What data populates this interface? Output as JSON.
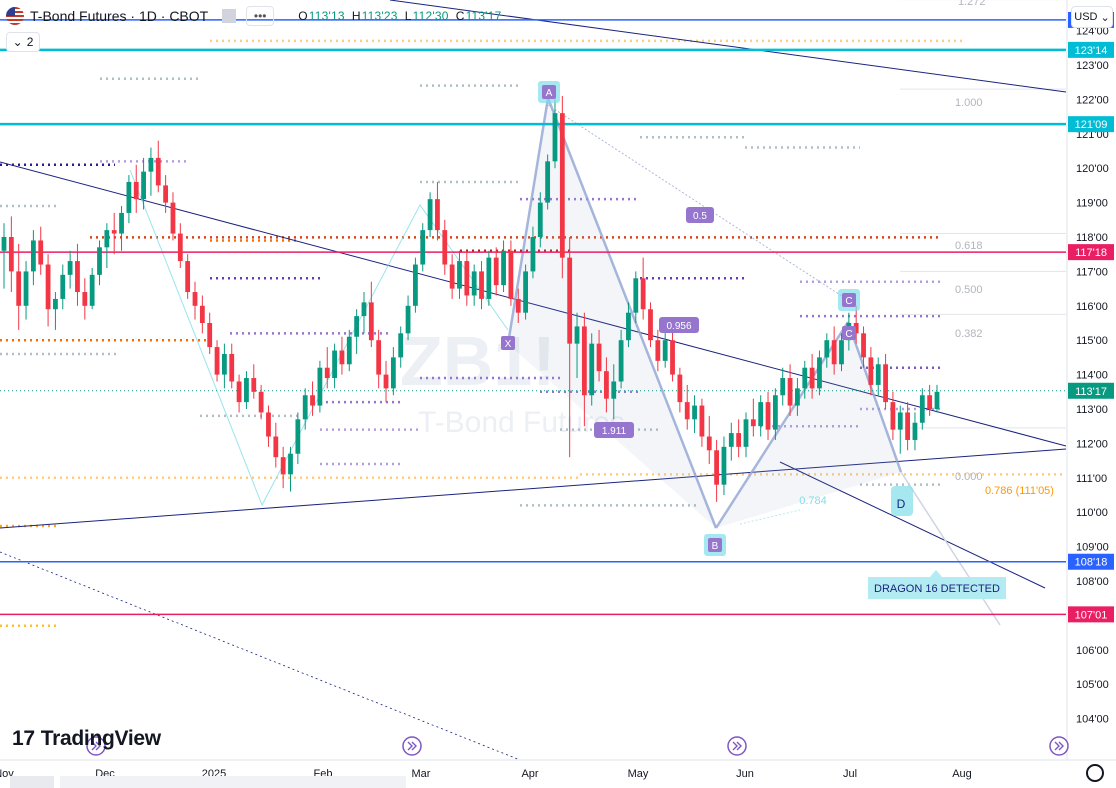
{
  "header": {
    "symbol": "T-Bond Futures",
    "interval": "1D",
    "exchange": "CBOT",
    "ohlc": {
      "o_label": "O",
      "o": "113'13",
      "h_label": "H",
      "h": "113'23",
      "l_label": "L",
      "l": "112'30",
      "c_label": "C",
      "c": "113'17"
    },
    "collapse_count": "2",
    "currency": "USD"
  },
  "branding": {
    "logo_text": "TradingView"
  },
  "watermark": {
    "code": "ZB1!",
    "name": "T-Bond Futures"
  },
  "colors": {
    "up": "#089981",
    "down": "#f23645",
    "cyan": "#00bcd4",
    "pink": "#e91e63",
    "blue": "#2962ff",
    "navy": "#1a237e",
    "purple": "#7e57c2",
    "orange": "#ff9800"
  },
  "chart_data": {
    "type": "candlestick",
    "ylim": [
      103.5,
      124.5
    ],
    "y_ticks": [
      "104'00",
      "105'00",
      "106'00",
      "107'00",
      "108'00",
      "109'00",
      "110'00",
      "111'00",
      "112'00",
      "113'00",
      "114'00",
      "115'00",
      "116'00",
      "117'00",
      "118'00",
      "119'00",
      "120'00",
      "121'00",
      "122'00",
      "123'00",
      "124'00"
    ],
    "x_ticks": [
      "Nov",
      "Dec",
      "2025",
      "Feb",
      "Mar",
      "Apr",
      "May",
      "Jun",
      "Jul",
      "Aug"
    ],
    "levels": [
      {
        "label": "124'10",
        "value": 124.31,
        "color": "#2962ff"
      },
      {
        "label": "123'14",
        "value": 123.44,
        "color": "#00bcd4"
      },
      {
        "label": "121'09",
        "value": 121.28,
        "color": "#00bcd4"
      },
      {
        "label": "117'18",
        "value": 117.56,
        "color": "#e91e63"
      },
      {
        "label": "113'17",
        "value": 113.53,
        "color": "#089981"
      },
      {
        "label": "108'18",
        "value": 108.56,
        "color": "#2962ff"
      },
      {
        "label": "107'01",
        "value": 107.03,
        "color": "#e91e63"
      }
    ],
    "fib_labels": [
      "1.272",
      "1.000",
      "0.618",
      "0.500",
      "0.382",
      "0.000",
      "0.786 (111'05)"
    ],
    "pattern_points": [
      {
        "label": "X",
        "date": "2025-03-22",
        "value": 115.5
      },
      {
        "label": "A",
        "date": "2025-04-04",
        "value": 122.1
      },
      {
        "label": "B",
        "date": "2025-05-22",
        "value": 110.1
      },
      {
        "label": "C",
        "date": "2025-06-30",
        "value": 116.0
      },
      {
        "label": "D",
        "date": "2025-07-15",
        "value": 111.7
      }
    ],
    "ratios": [
      "0.5",
      "0.956",
      "1.911",
      "0.784"
    ],
    "annotation": "DRAGON 16 DETECTED",
    "candles": [
      {
        "o": 117.6,
        "h": 118.4,
        "l": 116.5,
        "c": 118.0
      },
      {
        "o": 118.0,
        "h": 118.6,
        "l": 116.4,
        "c": 117.0
      },
      {
        "o": 117.0,
        "h": 117.8,
        "l": 115.3,
        "c": 116.0
      },
      {
        "o": 116.0,
        "h": 117.3,
        "l": 115.6,
        "c": 117.0
      },
      {
        "o": 117.0,
        "h": 118.2,
        "l": 116.6,
        "c": 117.9
      },
      {
        "o": 117.9,
        "h": 118.3,
        "l": 116.9,
        "c": 117.2
      },
      {
        "o": 117.2,
        "h": 117.5,
        "l": 115.4,
        "c": 115.9
      },
      {
        "o": 115.9,
        "h": 116.4,
        "l": 115.3,
        "c": 116.2
      },
      {
        "o": 116.2,
        "h": 117.2,
        "l": 115.9,
        "c": 116.9
      },
      {
        "o": 116.9,
        "h": 117.6,
        "l": 116.5,
        "c": 117.3
      },
      {
        "o": 117.3,
        "h": 117.8,
        "l": 116.0,
        "c": 116.4
      },
      {
        "o": 116.4,
        "h": 116.8,
        "l": 115.6,
        "c": 116.0
      },
      {
        "o": 116.0,
        "h": 117.1,
        "l": 115.9,
        "c": 116.9
      },
      {
        "o": 116.9,
        "h": 117.9,
        "l": 116.6,
        "c": 117.7
      },
      {
        "o": 117.7,
        "h": 118.4,
        "l": 117.1,
        "c": 118.2
      },
      {
        "o": 118.2,
        "h": 118.7,
        "l": 117.5,
        "c": 118.1
      },
      {
        "o": 118.1,
        "h": 118.9,
        "l": 117.6,
        "c": 118.7
      },
      {
        "o": 118.7,
        "h": 119.8,
        "l": 118.4,
        "c": 119.6
      },
      {
        "o": 119.6,
        "h": 120.1,
        "l": 118.7,
        "c": 119.1
      },
      {
        "o": 119.1,
        "h": 120.3,
        "l": 118.8,
        "c": 119.9
      },
      {
        "o": 119.9,
        "h": 120.6,
        "l": 119.2,
        "c": 120.3
      },
      {
        "o": 120.3,
        "h": 120.8,
        "l": 119.3,
        "c": 119.5
      },
      {
        "o": 119.5,
        "h": 119.8,
        "l": 118.7,
        "c": 119.0
      },
      {
        "o": 119.0,
        "h": 119.3,
        "l": 117.9,
        "c": 118.1
      },
      {
        "o": 118.1,
        "h": 118.4,
        "l": 117.1,
        "c": 117.3
      },
      {
        "o": 117.3,
        "h": 117.5,
        "l": 116.2,
        "c": 116.4
      },
      {
        "o": 116.4,
        "h": 116.7,
        "l": 115.6,
        "c": 116.0
      },
      {
        "o": 116.0,
        "h": 116.3,
        "l": 115.2,
        "c": 115.5
      },
      {
        "o": 115.5,
        "h": 115.8,
        "l": 114.6,
        "c": 114.8
      },
      {
        "o": 114.8,
        "h": 115.0,
        "l": 113.8,
        "c": 114.0
      },
      {
        "o": 114.0,
        "h": 114.9,
        "l": 113.6,
        "c": 114.6
      },
      {
        "o": 114.6,
        "h": 114.9,
        "l": 113.6,
        "c": 113.8
      },
      {
        "o": 113.8,
        "h": 114.0,
        "l": 112.9,
        "c": 113.2
      },
      {
        "o": 113.2,
        "h": 114.1,
        "l": 113.0,
        "c": 113.9
      },
      {
        "o": 113.9,
        "h": 114.3,
        "l": 113.3,
        "c": 113.5
      },
      {
        "o": 113.5,
        "h": 113.7,
        "l": 112.7,
        "c": 112.9
      },
      {
        "o": 112.9,
        "h": 113.1,
        "l": 111.9,
        "c": 112.2
      },
      {
        "o": 112.2,
        "h": 112.6,
        "l": 111.3,
        "c": 111.6
      },
      {
        "o": 111.6,
        "h": 111.9,
        "l": 110.7,
        "c": 111.1
      },
      {
        "o": 111.1,
        "h": 111.9,
        "l": 110.6,
        "c": 111.7
      },
      {
        "o": 111.7,
        "h": 112.9,
        "l": 111.4,
        "c": 112.7
      },
      {
        "o": 112.7,
        "h": 113.6,
        "l": 112.4,
        "c": 113.4
      },
      {
        "o": 113.4,
        "h": 113.8,
        "l": 112.8,
        "c": 113.1
      },
      {
        "o": 113.1,
        "h": 114.4,
        "l": 112.9,
        "c": 114.2
      },
      {
        "o": 114.2,
        "h": 114.8,
        "l": 113.6,
        "c": 113.9
      },
      {
        "o": 113.9,
        "h": 114.9,
        "l": 113.6,
        "c": 114.7
      },
      {
        "o": 114.7,
        "h": 115.1,
        "l": 114.0,
        "c": 114.3
      },
      {
        "o": 114.3,
        "h": 115.3,
        "l": 114.1,
        "c": 115.1
      },
      {
        "o": 115.1,
        "h": 115.9,
        "l": 114.6,
        "c": 115.7
      },
      {
        "o": 115.7,
        "h": 116.4,
        "l": 115.2,
        "c": 116.1
      },
      {
        "o": 116.1,
        "h": 116.7,
        "l": 114.8,
        "c": 115.0
      },
      {
        "o": 115.0,
        "h": 115.3,
        "l": 113.6,
        "c": 114.0
      },
      {
        "o": 114.0,
        "h": 114.4,
        "l": 113.2,
        "c": 113.6
      },
      {
        "o": 113.6,
        "h": 114.8,
        "l": 113.4,
        "c": 114.5
      },
      {
        "o": 114.5,
        "h": 115.4,
        "l": 114.2,
        "c": 115.2
      },
      {
        "o": 115.2,
        "h": 116.3,
        "l": 115.0,
        "c": 116.0
      },
      {
        "o": 116.0,
        "h": 117.4,
        "l": 115.8,
        "c": 117.2
      },
      {
        "o": 117.2,
        "h": 118.4,
        "l": 117.0,
        "c": 118.2
      },
      {
        "o": 118.2,
        "h": 119.3,
        "l": 118.0,
        "c": 119.1
      },
      {
        "o": 119.1,
        "h": 119.6,
        "l": 117.9,
        "c": 118.2
      },
      {
        "o": 118.2,
        "h": 118.5,
        "l": 116.9,
        "c": 117.2
      },
      {
        "o": 117.2,
        "h": 117.5,
        "l": 116.2,
        "c": 116.5
      },
      {
        "o": 116.5,
        "h": 117.6,
        "l": 116.2,
        "c": 117.3
      },
      {
        "o": 117.3,
        "h": 117.6,
        "l": 116.0,
        "c": 116.3
      },
      {
        "o": 116.3,
        "h": 117.2,
        "l": 116.0,
        "c": 117.0
      },
      {
        "o": 117.0,
        "h": 117.3,
        "l": 115.9,
        "c": 116.2
      },
      {
        "o": 116.2,
        "h": 117.6,
        "l": 116.0,
        "c": 117.4
      },
      {
        "o": 117.4,
        "h": 117.7,
        "l": 116.3,
        "c": 116.6
      },
      {
        "o": 116.6,
        "h": 117.9,
        "l": 116.4,
        "c": 117.6
      },
      {
        "o": 117.6,
        "h": 117.9,
        "l": 116.0,
        "c": 116.2
      },
      {
        "o": 116.2,
        "h": 116.5,
        "l": 115.5,
        "c": 115.8
      },
      {
        "o": 115.8,
        "h": 117.2,
        "l": 115.6,
        "c": 117.0
      },
      {
        "o": 117.0,
        "h": 118.3,
        "l": 116.8,
        "c": 118.0
      },
      {
        "o": 118.0,
        "h": 119.3,
        "l": 117.7,
        "c": 119.0
      },
      {
        "o": 119.0,
        "h": 120.4,
        "l": 118.8,
        "c": 120.2
      },
      {
        "o": 120.2,
        "h": 122.0,
        "l": 120.0,
        "c": 121.6
      },
      {
        "o": 121.6,
        "h": 122.1,
        "l": 116.8,
        "c": 117.4
      },
      {
        "o": 117.4,
        "h": 118.0,
        "l": 111.6,
        "c": 114.9
      },
      {
        "o": 114.9,
        "h": 115.8,
        "l": 113.9,
        "c": 115.4
      },
      {
        "o": 115.4,
        "h": 115.8,
        "l": 112.5,
        "c": 113.4
      },
      {
        "o": 113.4,
        "h": 115.2,
        "l": 113.1,
        "c": 114.9
      },
      {
        "o": 114.9,
        "h": 115.3,
        "l": 113.8,
        "c": 114.1
      },
      {
        "o": 114.1,
        "h": 114.5,
        "l": 112.9,
        "c": 113.3
      },
      {
        "o": 113.3,
        "h": 114.3,
        "l": 112.7,
        "c": 113.8
      },
      {
        "o": 113.8,
        "h": 115.3,
        "l": 113.6,
        "c": 115.0
      },
      {
        "o": 115.0,
        "h": 116.1,
        "l": 114.8,
        "c": 115.8
      },
      {
        "o": 115.8,
        "h": 117.0,
        "l": 115.5,
        "c": 116.8
      },
      {
        "o": 116.8,
        "h": 117.4,
        "l": 115.6,
        "c": 115.9
      },
      {
        "o": 115.9,
        "h": 116.1,
        "l": 114.8,
        "c": 115.0
      },
      {
        "o": 115.0,
        "h": 115.3,
        "l": 114.1,
        "c": 114.4
      },
      {
        "o": 114.4,
        "h": 115.3,
        "l": 114.2,
        "c": 115.0
      },
      {
        "o": 115.0,
        "h": 115.3,
        "l": 113.8,
        "c": 114.0
      },
      {
        "o": 114.0,
        "h": 114.2,
        "l": 112.9,
        "c": 113.2
      },
      {
        "o": 113.2,
        "h": 113.7,
        "l": 112.4,
        "c": 112.7
      },
      {
        "o": 112.7,
        "h": 113.4,
        "l": 112.3,
        "c": 113.1
      },
      {
        "o": 113.1,
        "h": 113.3,
        "l": 111.9,
        "c": 112.2
      },
      {
        "o": 112.2,
        "h": 112.8,
        "l": 111.4,
        "c": 111.8
      },
      {
        "o": 111.8,
        "h": 112.1,
        "l": 110.3,
        "c": 110.8
      },
      {
        "o": 110.8,
        "h": 112.2,
        "l": 110.5,
        "c": 111.9
      },
      {
        "o": 111.9,
        "h": 112.6,
        "l": 111.5,
        "c": 112.3
      },
      {
        "o": 112.3,
        "h": 112.7,
        "l": 111.6,
        "c": 111.9
      },
      {
        "o": 111.9,
        "h": 112.9,
        "l": 111.6,
        "c": 112.7
      },
      {
        "o": 112.7,
        "h": 113.3,
        "l": 112.2,
        "c": 112.5
      },
      {
        "o": 112.5,
        "h": 113.4,
        "l": 112.2,
        "c": 113.2
      },
      {
        "o": 113.2,
        "h": 113.5,
        "l": 112.1,
        "c": 112.4
      },
      {
        "o": 112.4,
        "h": 113.6,
        "l": 112.1,
        "c": 113.4
      },
      {
        "o": 113.4,
        "h": 114.2,
        "l": 113.1,
        "c": 113.9
      },
      {
        "o": 113.9,
        "h": 114.3,
        "l": 112.8,
        "c": 113.1
      },
      {
        "o": 113.1,
        "h": 113.9,
        "l": 112.8,
        "c": 113.6
      },
      {
        "o": 113.6,
        "h": 114.4,
        "l": 113.3,
        "c": 114.2
      },
      {
        "o": 114.2,
        "h": 114.6,
        "l": 113.3,
        "c": 113.6
      },
      {
        "o": 113.6,
        "h": 114.7,
        "l": 113.4,
        "c": 114.5
      },
      {
        "o": 114.5,
        "h": 115.2,
        "l": 114.2,
        "c": 115.0
      },
      {
        "o": 115.0,
        "h": 115.4,
        "l": 114.0,
        "c": 114.3
      },
      {
        "o": 114.3,
        "h": 115.2,
        "l": 114.1,
        "c": 115.0
      },
      {
        "o": 115.0,
        "h": 115.8,
        "l": 114.7,
        "c": 115.5
      },
      {
        "o": 115.5,
        "h": 116.0,
        "l": 114.9,
        "c": 115.2
      },
      {
        "o": 115.2,
        "h": 115.4,
        "l": 114.2,
        "c": 114.5
      },
      {
        "o": 114.5,
        "h": 114.8,
        "l": 113.4,
        "c": 113.7
      },
      {
        "o": 113.7,
        "h": 114.5,
        "l": 113.4,
        "c": 114.3
      },
      {
        "o": 114.3,
        "h": 114.6,
        "l": 113.0,
        "c": 113.2
      },
      {
        "o": 113.2,
        "h": 113.5,
        "l": 112.1,
        "c": 112.4
      },
      {
        "o": 112.4,
        "h": 113.1,
        "l": 111.7,
        "c": 112.9
      },
      {
        "o": 112.9,
        "h": 113.2,
        "l": 111.8,
        "c": 112.1
      },
      {
        "o": 112.1,
        "h": 112.9,
        "l": 111.8,
        "c": 112.6
      },
      {
        "o": 112.6,
        "h": 113.6,
        "l": 112.4,
        "c": 113.4
      },
      {
        "o": 113.4,
        "h": 113.7,
        "l": 112.8,
        "c": 113.0
      },
      {
        "o": 113.0,
        "h": 113.7,
        "l": 112.9,
        "c": 113.5
      }
    ]
  }
}
